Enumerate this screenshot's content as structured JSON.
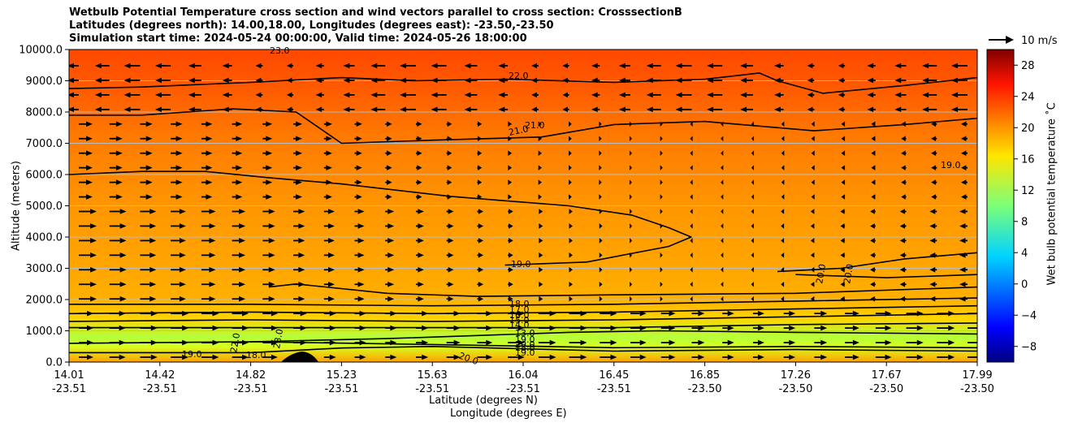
{
  "chart_data": {
    "type": "contour",
    "title_lines": [
      "Wetbulb Potential Temperature cross section and wind vectors parallel to cross section: CrosssectionB",
      "Latitudes (degrees north): 14.00,18.00, Longitudes (degrees east): -23.50,-23.50",
      "Simulation start time: 2024-05-24 00:00:00, Valid time: 2024-05-26 18:00:00"
    ],
    "ylabel": "Altitude (meters)",
    "xlabel_lat": "Latitude (degrees N)",
    "xlabel_lon": "Longitude (degrees E)",
    "colorbar_label": "Wet bulb potential temperature ˚C",
    "quiver_key": "10 m/s",
    "ylim": [
      0,
      10000
    ],
    "y_ticks": [
      "0.0",
      "1000.0",
      "2000.0",
      "3000.0",
      "4000.0",
      "5000.0",
      "6000.0",
      "7000.0",
      "8000.0",
      "9000.0",
      "10000.0"
    ],
    "x_ticks": [
      {
        "lat": "14.01",
        "lon": "-23.51"
      },
      {
        "lat": "14.42",
        "lon": "-23.51"
      },
      {
        "lat": "14.82",
        "lon": "-23.51"
      },
      {
        "lat": "15.23",
        "lon": "-23.51"
      },
      {
        "lat": "15.63",
        "lon": "-23.51"
      },
      {
        "lat": "16.04",
        "lon": "-23.51"
      },
      {
        "lat": "16.45",
        "lon": "-23.51"
      },
      {
        "lat": "16.85",
        "lon": "-23.50"
      },
      {
        "lat": "17.26",
        "lon": "-23.50"
      },
      {
        "lat": "17.67",
        "lon": "-23.50"
      },
      {
        "lat": "17.99",
        "lon": "-23.50"
      }
    ],
    "colorbar_range": [
      -10,
      30
    ],
    "colorbar_ticks": [
      -8,
      -4,
      0,
      4,
      8,
      12,
      16,
      20,
      24,
      28
    ],
    "colorbar_tick_labels": [
      "−8",
      "−4",
      "0",
      "4",
      "8",
      "12",
      "16",
      "20",
      "24",
      "28"
    ],
    "contour_labels": [
      "23.0",
      "22.0",
      "21.0",
      "21.0",
      "19.0",
      "19.0",
      "20.0",
      "20.0",
      "18.0",
      "17.0",
      "16.0",
      "15.0",
      "14.0",
      "13.0",
      "19.0",
      "18.0",
      "20.0",
      "22.0",
      "23.0",
      "18.0",
      "19.0",
      "19.0",
      "20.0"
    ],
    "contours": [
      {
        "value": 22,
        "points": [
          [
            0,
            8750
          ],
          [
            8,
            8800
          ],
          [
            20,
            8950
          ],
          [
            30,
            9100
          ],
          [
            38,
            9000
          ],
          [
            48,
            9050
          ],
          [
            60,
            8950
          ],
          [
            70,
            9050
          ],
          [
            76,
            9250
          ],
          [
            78,
            9000
          ],
          [
            83,
            8600
          ],
          [
            92,
            8850
          ],
          [
            100,
            9100
          ]
        ]
      },
      {
        "value": 21,
        "points": [
          [
            0,
            7900
          ],
          [
            8,
            7900
          ],
          [
            18,
            8100
          ],
          [
            25,
            8000
          ],
          [
            27,
            7600
          ],
          [
            30,
            7000
          ],
          [
            40,
            7100
          ],
          [
            52,
            7200
          ],
          [
            60,
            7600
          ],
          [
            70,
            7700
          ],
          [
            82,
            7400
          ],
          [
            92,
            7600
          ],
          [
            100,
            7800
          ]
        ]
      },
      {
        "value": 19,
        "points": [
          [
            0,
            6000
          ],
          [
            8,
            6100
          ],
          [
            15,
            6100
          ],
          [
            22,
            5900
          ],
          [
            30,
            5700
          ],
          [
            42,
            5300
          ],
          [
            55,
            5000
          ],
          [
            62,
            4700
          ],
          [
            66,
            4300
          ],
          [
            68.5,
            4000
          ],
          [
            66,
            3700
          ],
          [
            57,
            3200
          ],
          [
            48,
            3100
          ]
        ]
      },
      {
        "value": 20,
        "points": [
          [
            78,
            2900
          ],
          [
            85,
            3000
          ],
          [
            92,
            3300
          ],
          [
            100,
            3500
          ]
        ]
      },
      {
        "value": 20,
        "points": [
          [
            80,
            2800
          ],
          [
            90,
            2700
          ],
          [
            100,
            2800
          ]
        ]
      },
      {
        "value": 18,
        "points": [
          [
            22,
            2400
          ],
          [
            25,
            2500
          ],
          [
            35,
            2200
          ],
          [
            45,
            2100
          ],
          [
            60,
            2150
          ],
          [
            80,
            2200
          ],
          [
            100,
            2400
          ]
        ]
      },
      {
        "value": 17,
        "points": [
          [
            0,
            1850
          ],
          [
            20,
            1850
          ],
          [
            40,
            1800
          ],
          [
            60,
            1850
          ],
          [
            80,
            1950
          ],
          [
            100,
            2050
          ]
        ]
      },
      {
        "value": 16,
        "points": [
          [
            0,
            1550
          ],
          [
            20,
            1600
          ],
          [
            40,
            1550
          ],
          [
            60,
            1600
          ],
          [
            80,
            1700
          ],
          [
            100,
            1800
          ]
        ]
      },
      {
        "value": 15,
        "points": [
          [
            0,
            1300
          ],
          [
            20,
            1350
          ],
          [
            40,
            1300
          ],
          [
            60,
            1350
          ],
          [
            80,
            1450
          ],
          [
            100,
            1550
          ]
        ]
      },
      {
        "value": 14,
        "points": [
          [
            0,
            1100
          ],
          [
            20,
            1100
          ],
          [
            40,
            1100
          ],
          [
            60,
            1100
          ],
          [
            80,
            1200
          ],
          [
            100,
            1250
          ]
        ]
      },
      {
        "value": 13,
        "points": [
          [
            20,
            650
          ],
          [
            35,
            750
          ],
          [
            45,
            850
          ],
          [
            55,
            950
          ],
          [
            65,
            1000
          ],
          [
            80,
            950
          ],
          [
            100,
            900
          ]
        ]
      },
      {
        "value": 18,
        "points": [
          [
            0,
            600
          ],
          [
            20,
            650
          ],
          [
            40,
            560
          ],
          [
            60,
            460
          ],
          [
            80,
            500
          ],
          [
            100,
            460
          ]
        ]
      },
      {
        "value": 19,
        "points": [
          [
            0,
            300
          ],
          [
            20,
            300
          ],
          [
            30,
            450
          ],
          [
            40,
            500
          ],
          [
            60,
            350
          ],
          [
            80,
            400
          ],
          [
            100,
            350
          ]
        ]
      }
    ]
  }
}
